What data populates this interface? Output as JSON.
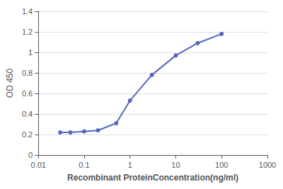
{
  "chart_data": {
    "type": "line",
    "xlabel": "Recombinant ProteinConcentration(ng/ml)",
    "ylabel": "OD 450",
    "x": [
      0.03,
      0.05,
      0.1,
      0.2,
      0.5,
      1,
      3,
      10,
      30,
      100
    ],
    "values": [
      0.22,
      0.22,
      0.23,
      0.24,
      0.31,
      0.53,
      0.78,
      0.97,
      1.09,
      1.18
    ],
    "color": "#5566bb",
    "marker": "circle",
    "log": "x",
    "xlim": [
      0.01,
      1000
    ],
    "xticks": [
      0.01,
      0.1,
      1,
      10,
      100,
      1000
    ],
    "ylim": [
      0,
      1.4
    ],
    "yticks": [
      0,
      0.2,
      0.4,
      0.6,
      0.8,
      1.0,
      1.2,
      1.4
    ],
    "grid": "y"
  }
}
